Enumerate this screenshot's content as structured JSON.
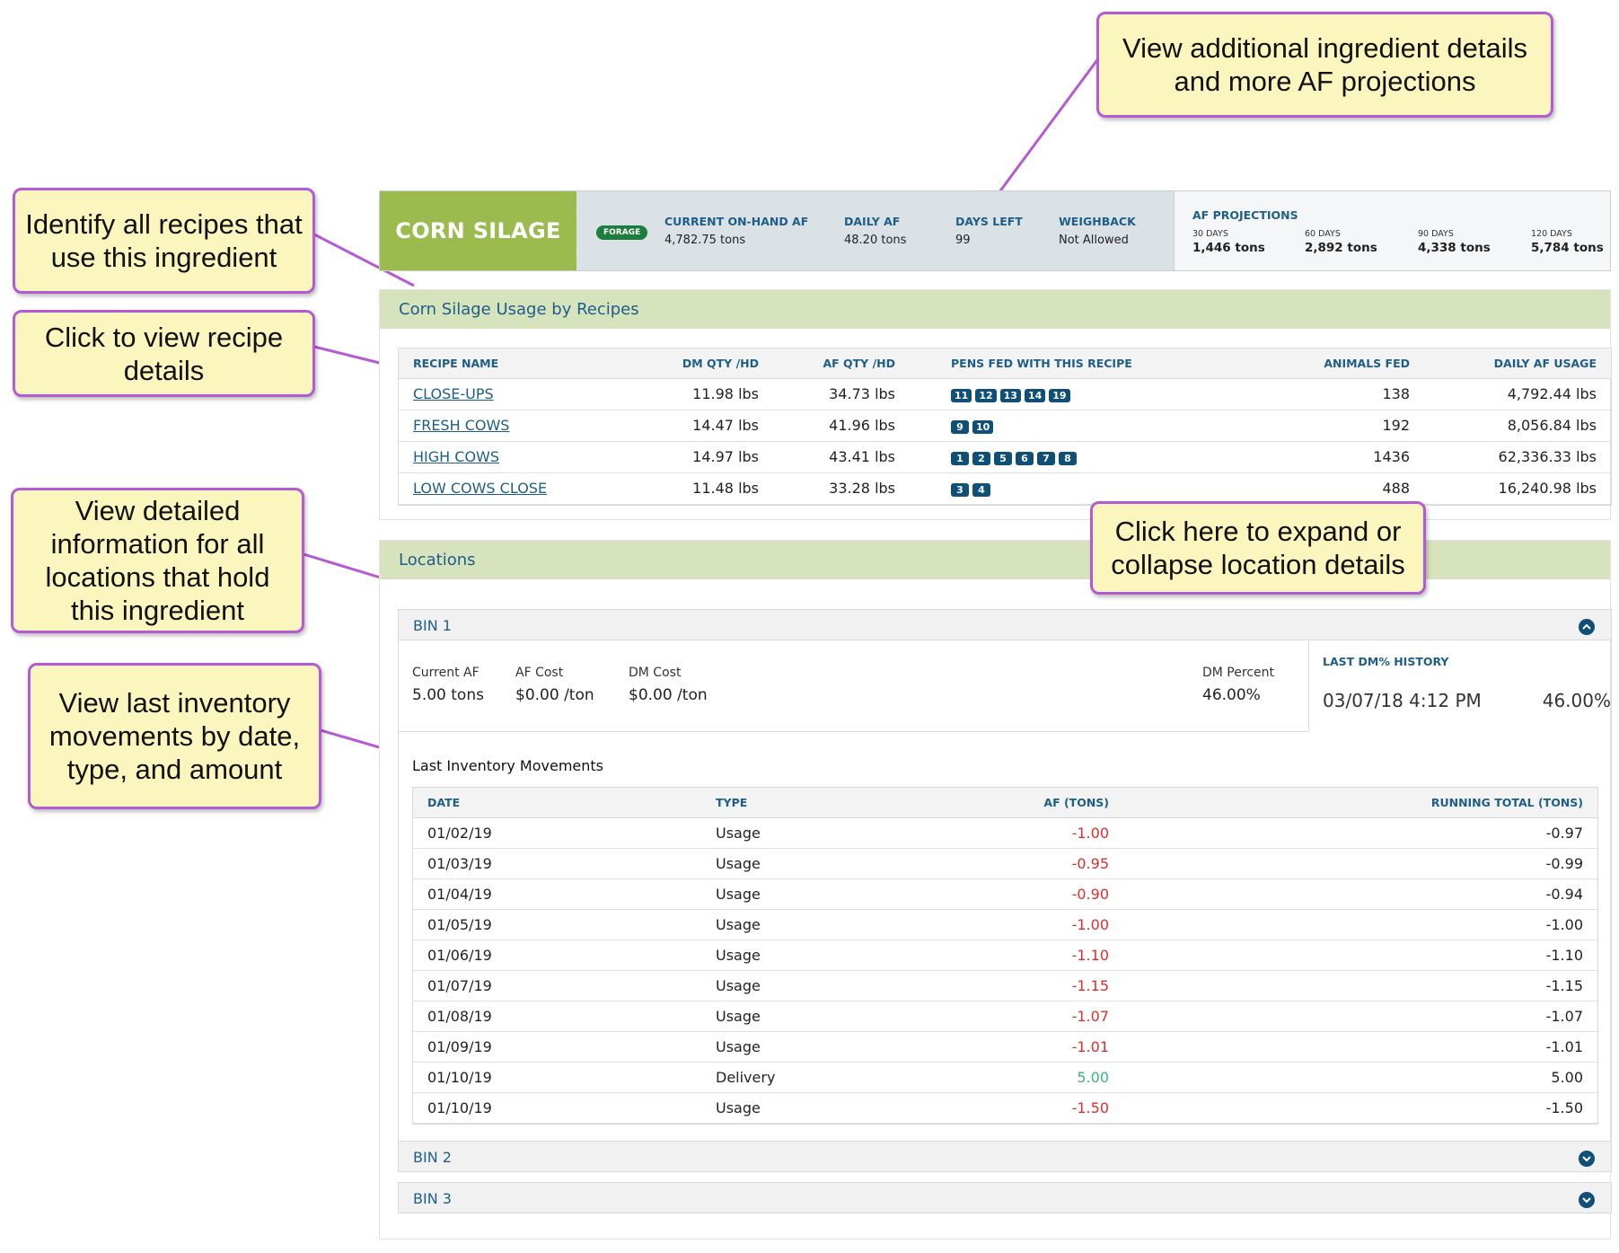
{
  "callouts": {
    "details": "View additional ingredient details and more AF projections",
    "recipes": "Identify all recipes that use this ingredient",
    "recipe_click": "Click to view recipe details",
    "locations": "View detailed information for all locations that hold this ingredient",
    "expand": "Click here to expand or collapse location details",
    "movements": "View last inventory movements by date, type, and amount"
  },
  "ingredient": {
    "name": "CORN SILAGE",
    "badge": "FORAGE",
    "stats": [
      {
        "label": "CURRENT ON-HAND AF",
        "value": "4,782.75 tons"
      },
      {
        "label": "DAILY AF",
        "value": "48.20 tons"
      },
      {
        "label": "DAYS LEFT",
        "value": "99"
      },
      {
        "label": "WEIGHBACK",
        "value": "Not Allowed"
      }
    ],
    "projections_title": "AF PROJECTIONS",
    "projections": [
      {
        "days": "30 DAYS",
        "tons": "1,446 tons"
      },
      {
        "days": "60 DAYS",
        "tons": "2,892 tons"
      },
      {
        "days": "90 DAYS",
        "tons": "4,338 tons"
      },
      {
        "days": "120 DAYS",
        "tons": "5,784 tons"
      }
    ]
  },
  "recipes_panel": {
    "title": "Corn Silage Usage by Recipes",
    "headers": [
      "RECIPE NAME",
      "DM QTY /HD",
      "AF QTY /HD",
      "PENS FED WITH THIS RECIPE",
      "ANIMALS FED",
      "DAILY AF USAGE"
    ],
    "rows": [
      {
        "name": "CLOSE-UPS",
        "dm": "11.98 lbs",
        "af": "34.73 lbs",
        "pens": [
          "11",
          "12",
          "13",
          "14",
          "19"
        ],
        "animals": "138",
        "usage": "4,792.44 lbs"
      },
      {
        "name": "FRESH COWS",
        "dm": "14.47 lbs",
        "af": "41.96 lbs",
        "pens": [
          "9",
          "10"
        ],
        "animals": "192",
        "usage": "8,056.84 lbs"
      },
      {
        "name": "HIGH COWS",
        "dm": "14.97 lbs",
        "af": "43.41 lbs",
        "pens": [
          "1",
          "2",
          "5",
          "6",
          "7",
          "8"
        ],
        "animals": "1436",
        "usage": "62,336.33 lbs"
      },
      {
        "name": "LOW COWS CLOSE",
        "dm": "11.48 lbs",
        "af": "33.28 lbs",
        "pens": [
          "3",
          "4"
        ],
        "animals": "488",
        "usage": "16,240.98 lbs"
      }
    ]
  },
  "locations_panel": {
    "title": "Locations",
    "bins": [
      {
        "name": "BIN 1",
        "expanded": true,
        "fields": [
          {
            "label": "Current AF",
            "value": "5.00 tons"
          },
          {
            "label": "AF Cost",
            "value": "$0.00 /ton"
          },
          {
            "label": "DM Cost",
            "value": "$0.00 /ton"
          },
          {
            "label": "DM Percent",
            "value": "46.00%"
          }
        ],
        "dm_history": {
          "title": "LAST DM% HISTORY",
          "datetime": "03/07/18 4:12 PM",
          "percent": "46.00%"
        },
        "movements_title": "Last Inventory Movements",
        "movement_headers": [
          "DATE",
          "TYPE",
          "AF (TONS)",
          "RUNNING TOTAL (TONS)"
        ],
        "movements": [
          {
            "date": "01/02/19",
            "type": "Usage",
            "af": "-1.00",
            "total": "-0.97",
            "kind": "neg"
          },
          {
            "date": "01/03/19",
            "type": "Usage",
            "af": "-0.95",
            "total": "-0.99",
            "kind": "neg"
          },
          {
            "date": "01/04/19",
            "type": "Usage",
            "af": "-0.90",
            "total": "-0.94",
            "kind": "neg"
          },
          {
            "date": "01/05/19",
            "type": "Usage",
            "af": "-1.00",
            "total": "-1.00",
            "kind": "neg"
          },
          {
            "date": "01/06/19",
            "type": "Usage",
            "af": "-1.10",
            "total": "-1.10",
            "kind": "neg"
          },
          {
            "date": "01/07/19",
            "type": "Usage",
            "af": "-1.15",
            "total": "-1.15",
            "kind": "neg"
          },
          {
            "date": "01/08/19",
            "type": "Usage",
            "af": "-1.07",
            "total": "-1.07",
            "kind": "neg"
          },
          {
            "date": "01/09/19",
            "type": "Usage",
            "af": "-1.01",
            "total": "-1.01",
            "kind": "neg"
          },
          {
            "date": "01/10/19",
            "type": "Delivery",
            "af": "5.00",
            "total": "5.00",
            "kind": "pos"
          },
          {
            "date": "01/10/19",
            "type": "Usage",
            "af": "-1.50",
            "total": "-1.50",
            "kind": "neg"
          }
        ]
      },
      {
        "name": "BIN 2",
        "expanded": false
      },
      {
        "name": "BIN 3",
        "expanded": false
      }
    ]
  },
  "colors": {
    "title_green": "#9bbb4e",
    "panel_head": "#d7e3bd",
    "accent_blue": "#1e5e88",
    "pen_badge": "#0f4f78",
    "negative": "#e02d2d",
    "positive": "#3fb47a",
    "callout_fill": "#fbf6bd",
    "callout_border": "#b65ad4"
  }
}
